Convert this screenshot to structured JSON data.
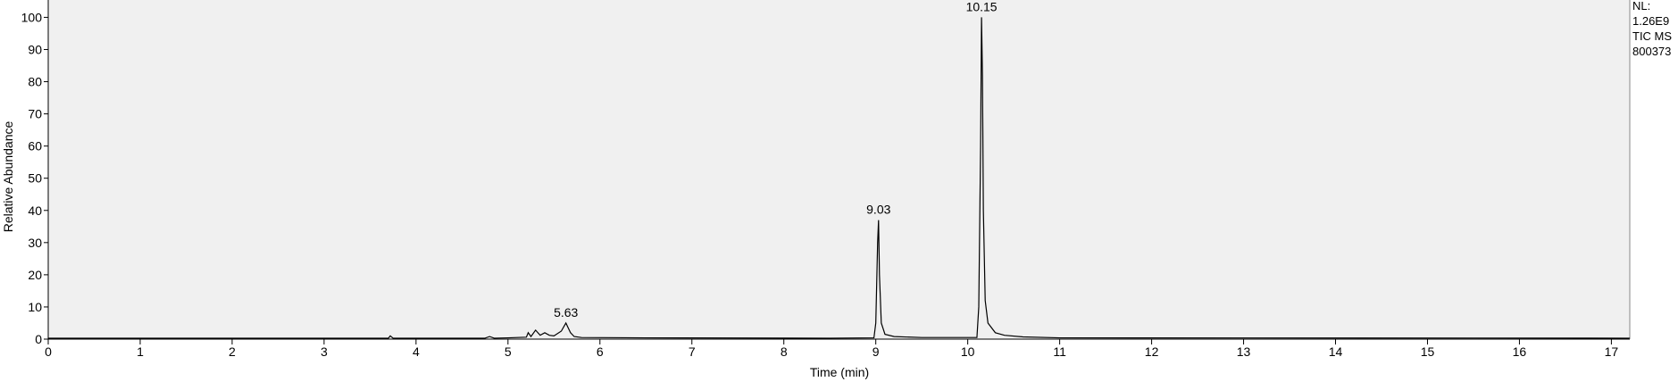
{
  "chart_data": {
    "type": "line",
    "x_label": "Time (min)",
    "y_label": "Relative Abundance",
    "x": [
      0,
      3.7,
      3.72,
      3.75,
      4.75,
      4.8,
      4.85,
      5.0,
      5.1,
      5.2,
      5.22,
      5.25,
      5.3,
      5.35,
      5.4,
      5.45,
      5.5,
      5.58,
      5.63,
      5.68,
      5.72,
      5.8,
      6.5,
      8.5,
      8.98,
      9.0,
      9.02,
      9.03,
      9.04,
      9.06,
      9.1,
      9.2,
      9.5,
      10.1,
      10.12,
      10.14,
      10.15,
      10.16,
      10.17,
      10.19,
      10.22,
      10.3,
      10.4,
      10.6,
      11,
      17.2
    ],
    "series": [
      {
        "color": "#000000",
        "values": [
          0.3,
          0.3,
          1,
          0.3,
          0.3,
          0.8,
          0.3,
          0.4,
          0.5,
          0.6,
          2,
          0.8,
          2.8,
          1.2,
          2,
          1.2,
          1.0,
          2.5,
          5,
          2,
          0.8,
          0.5,
          0.4,
          0.3,
          0.4,
          5,
          30,
          37,
          20,
          5,
          1.5,
          0.8,
          0.5,
          0.5,
          10,
          60,
          100,
          82,
          40,
          12,
          5,
          2,
          1.2,
          0.7,
          0.4,
          0.3
        ]
      }
    ],
    "peaks": [
      {
        "x": 5.63,
        "y": 5
      },
      {
        "x": 9.03,
        "y": 37
      },
      {
        "x": 10.15,
        "y": 100
      }
    ],
    "info": [
      "NL:",
      "1.26E9",
      "TIC  MS",
      "800373"
    ],
    "xlim": [
      0,
      17.2
    ],
    "xticks": [
      0,
      1,
      2,
      3,
      4,
      5,
      6,
      7,
      8,
      9,
      10,
      11,
      12,
      13,
      14,
      15,
      16,
      17
    ],
    "ylim": [
      0,
      104
    ],
    "yticks": [
      0,
      10,
      20,
      30,
      40,
      50,
      60,
      70,
      80,
      90,
      100
    ],
    "background": "#f0f0f0"
  }
}
